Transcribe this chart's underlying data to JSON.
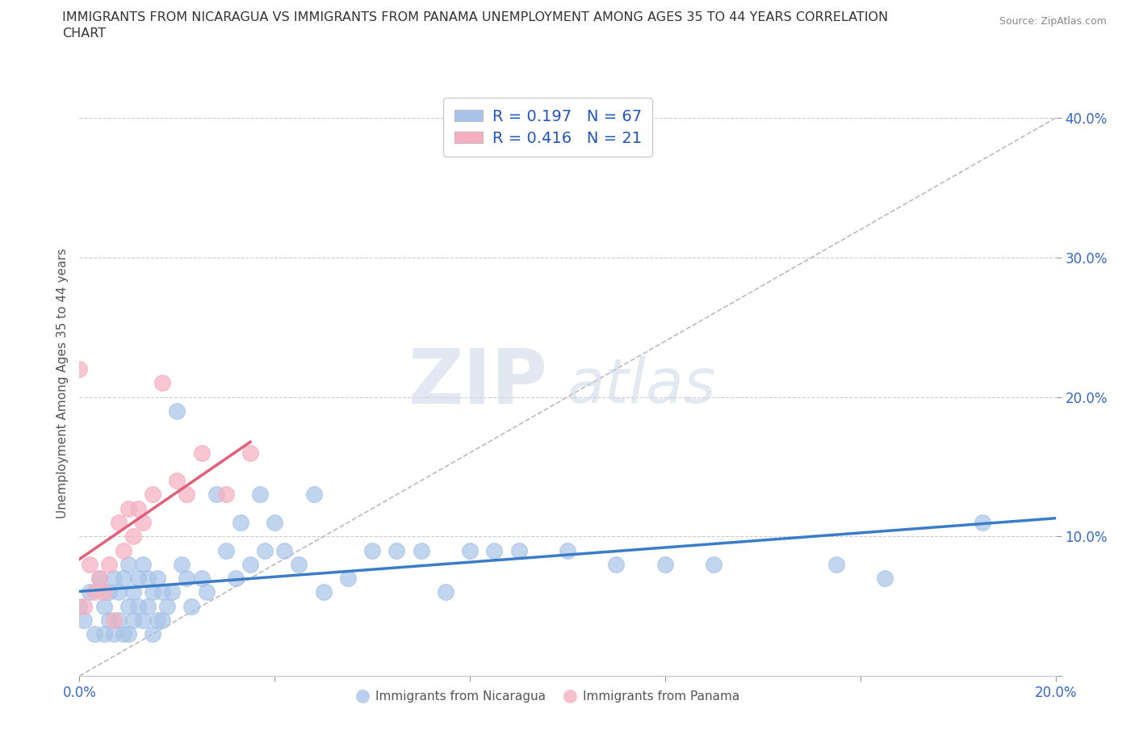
{
  "title_line1": "IMMIGRANTS FROM NICARAGUA VS IMMIGRANTS FROM PANAMA UNEMPLOYMENT AMONG AGES 35 TO 44 YEARS CORRELATION",
  "title_line2": "CHART",
  "source": "Source: ZipAtlas.com",
  "ylabel": "Unemployment Among Ages 35 to 44 years",
  "xlim": [
    0.0,
    0.2
  ],
  "ylim": [
    0.0,
    0.42
  ],
  "xticks": [
    0.0,
    0.04,
    0.08,
    0.12,
    0.16,
    0.2
  ],
  "yticks": [
    0.0,
    0.1,
    0.2,
    0.3,
    0.4
  ],
  "watermark_zip": "ZIP",
  "watermark_atlas": "atlas",
  "nicaragua_color": "#a8c4e8",
  "panama_color": "#f4afc0",
  "nicaragua_line_color": "#3a7cc7",
  "panama_line_color": "#e0607a",
  "diagonal_color": "#cccccc",
  "nicaragua_R": 0.197,
  "nicaragua_N": 67,
  "panama_R": 0.416,
  "panama_N": 21,
  "legend_color": "#2255bb",
  "grid_color": "#cccccc",
  "background_color": "#ffffff",
  "nicaragua_scatter_x": [
    0.0,
    0.001,
    0.002,
    0.003,
    0.004,
    0.005,
    0.005,
    0.006,
    0.006,
    0.007,
    0.007,
    0.008,
    0.008,
    0.009,
    0.009,
    0.01,
    0.01,
    0.01,
    0.011,
    0.011,
    0.012,
    0.012,
    0.013,
    0.013,
    0.014,
    0.014,
    0.015,
    0.015,
    0.016,
    0.016,
    0.017,
    0.017,
    0.018,
    0.019,
    0.02,
    0.021,
    0.022,
    0.023,
    0.025,
    0.026,
    0.028,
    0.03,
    0.032,
    0.033,
    0.035,
    0.037,
    0.038,
    0.04,
    0.042,
    0.045,
    0.048,
    0.05,
    0.055,
    0.06,
    0.065,
    0.07,
    0.075,
    0.08,
    0.085,
    0.09,
    0.1,
    0.11,
    0.12,
    0.13,
    0.155,
    0.165,
    0.185
  ],
  "nicaragua_scatter_y": [
    0.05,
    0.04,
    0.06,
    0.03,
    0.07,
    0.05,
    0.03,
    0.06,
    0.04,
    0.07,
    0.03,
    0.06,
    0.04,
    0.07,
    0.03,
    0.08,
    0.05,
    0.03,
    0.06,
    0.04,
    0.07,
    0.05,
    0.08,
    0.04,
    0.07,
    0.05,
    0.06,
    0.03,
    0.07,
    0.04,
    0.06,
    0.04,
    0.05,
    0.06,
    0.19,
    0.08,
    0.07,
    0.05,
    0.07,
    0.06,
    0.13,
    0.09,
    0.07,
    0.11,
    0.08,
    0.13,
    0.09,
    0.11,
    0.09,
    0.08,
    0.13,
    0.06,
    0.07,
    0.09,
    0.09,
    0.09,
    0.06,
    0.09,
    0.09,
    0.09,
    0.09,
    0.08,
    0.08,
    0.08,
    0.08,
    0.07,
    0.11
  ],
  "panama_scatter_x": [
    0.0,
    0.001,
    0.002,
    0.003,
    0.004,
    0.005,
    0.006,
    0.007,
    0.008,
    0.009,
    0.01,
    0.011,
    0.012,
    0.013,
    0.015,
    0.017,
    0.02,
    0.022,
    0.025,
    0.03,
    0.035
  ],
  "panama_scatter_y": [
    0.22,
    0.05,
    0.08,
    0.06,
    0.07,
    0.06,
    0.08,
    0.04,
    0.11,
    0.09,
    0.12,
    0.1,
    0.12,
    0.11,
    0.13,
    0.21,
    0.14,
    0.13,
    0.16,
    0.13,
    0.16
  ]
}
